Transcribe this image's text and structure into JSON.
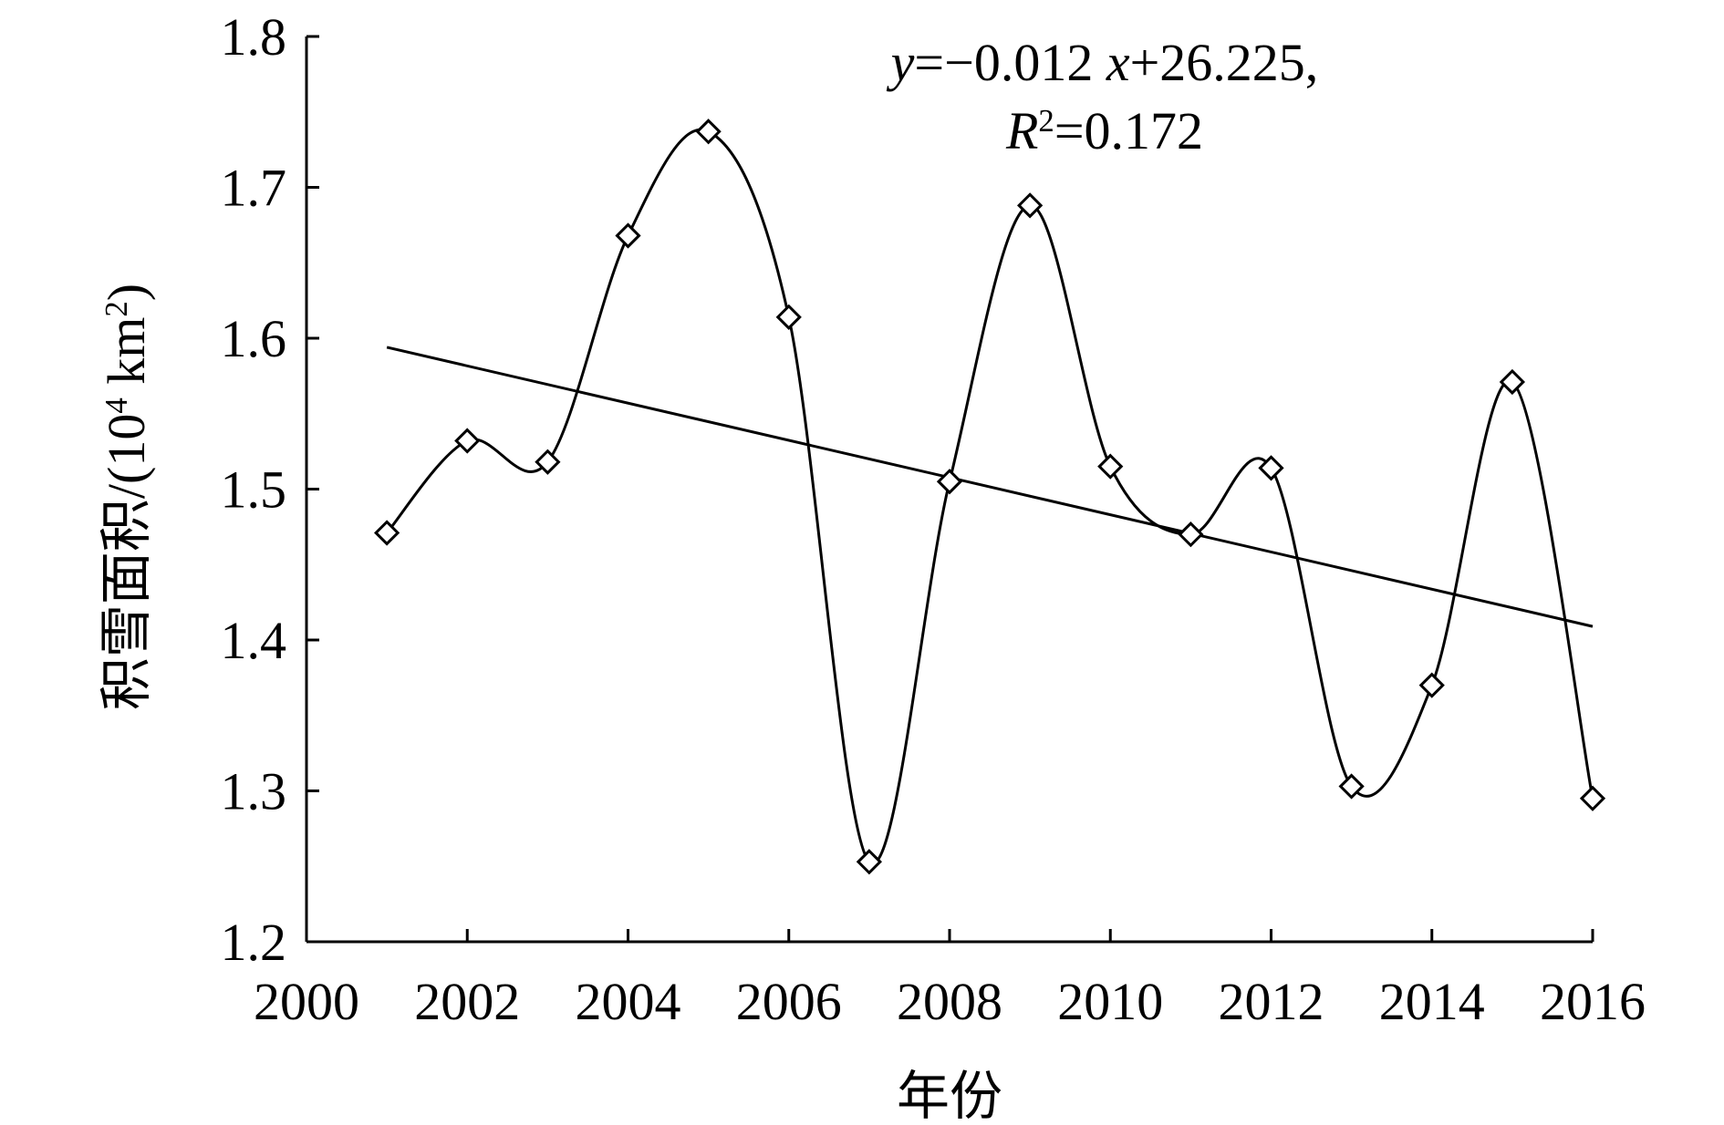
{
  "chart_data": {
    "type": "line",
    "x": [
      2001,
      2002,
      2003,
      2004,
      2005,
      2006,
      2007,
      2008,
      2009,
      2010,
      2011,
      2012,
      2013,
      2014,
      2015,
      2016
    ],
    "series": [
      {
        "color": "#000000",
        "values": [
          1.471,
          1.532,
          1.518,
          1.668,
          1.737,
          1.614,
          1.253,
          1.505,
          1.688,
          1.515,
          1.47,
          1.514,
          1.303,
          1.37,
          1.571,
          1.295
        ]
      }
    ],
    "trendline": {
      "x": [
        2001,
        2016
      ],
      "values": [
        1.594,
        1.409
      ],
      "color": "#000000"
    },
    "xlabel": "年份",
    "ylabel": [
      {
        "text": "积雪面积/(10",
        "style": "normal"
      },
      {
        "text": "4",
        "style": "sup"
      },
      {
        "text": " km",
        "style": "normal"
      },
      {
        "text": "2",
        "style": "sup"
      },
      {
        "text": ")",
        "style": "normal"
      }
    ],
    "annotation": [
      [
        {
          "text": "y",
          "style": "italic"
        },
        {
          "text": "=−0.012 ",
          "style": "normal"
        },
        {
          "text": "x",
          "style": "italic"
        },
        {
          "text": "+26.225,",
          "style": "normal"
        }
      ],
      [
        {
          "text": "R",
          "style": "italic"
        },
        {
          "text": "2",
          "style": "sup"
        },
        {
          "text": "=0.172",
          "style": "normal"
        }
      ]
    ],
    "xlim": [
      2000,
      2016
    ],
    "xticks": [
      2000,
      2002,
      2004,
      2006,
      2008,
      2010,
      2012,
      2014,
      2016
    ],
    "ylim": [
      1.2,
      1.8
    ],
    "yticks": [
      1.2,
      1.3,
      1.4,
      1.5,
      1.6,
      1.7,
      1.8
    ],
    "grid": false
  }
}
